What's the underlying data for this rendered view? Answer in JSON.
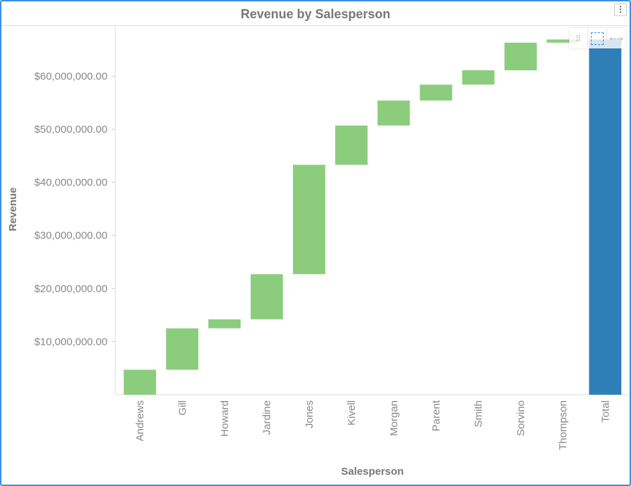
{
  "title": "Revenue by Salesperson",
  "toolbar": {
    "menu_icon": "vertical-ellipsis-icon",
    "drag_icon": "drag-handle-icon",
    "select_icon": "marquee-select-icon",
    "pan_icon": "pan-arrows-icon"
  },
  "colors": {
    "increase": "#8bcd7d",
    "total": "#2e7fb8",
    "border": "#3a8ee6"
  },
  "chart_data": {
    "type": "waterfall",
    "title": "Revenue by Salesperson",
    "xlabel": "Salesperson",
    "ylabel": "Revenue",
    "ylim": [
      0,
      70000000
    ],
    "yticks": [
      10000000,
      20000000,
      30000000,
      40000000,
      50000000,
      60000000
    ],
    "ytick_labels": [
      "$10,000,000.00",
      "$20,000,000.00",
      "$30,000,000.00",
      "$40,000,000.00",
      "$50,000,000.00",
      "$60,000,000.00"
    ],
    "categories": [
      "Andrews",
      "Gill",
      "Howard",
      "Jardine",
      "Jones",
      "Kivell",
      "Morgan",
      "Parent",
      "Smith",
      "Sorvino",
      "Thompson",
      "Total"
    ],
    "values": [
      4700000,
      7800000,
      1700000,
      8500000,
      20600000,
      7400000,
      4700000,
      3000000,
      2700000,
      5200000,
      600000,
      66900000
    ],
    "is_total": [
      false,
      false,
      false,
      false,
      false,
      false,
      false,
      false,
      false,
      false,
      false,
      true
    ],
    "grid": false
  }
}
